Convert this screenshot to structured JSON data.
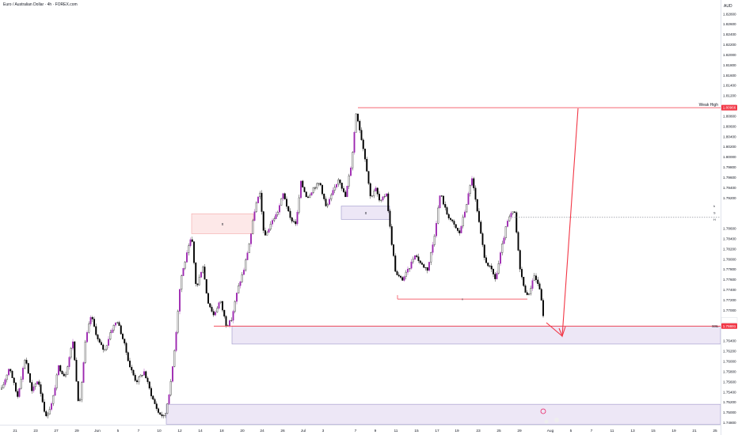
{
  "header": {
    "symbol_title": "Euro / Australian Dollar · 4h · FOREX.com",
    "currency": "AUD"
  },
  "colors": {
    "candle": "#000000",
    "highlight_candle": "#9c27b0",
    "red_line": "#f23645",
    "zone_fill": "#ede7f6",
    "zone_border": "#9c95c9",
    "pink_fill": "#fde8e8"
  },
  "chart_data": {
    "type": "candlestick",
    "timeframe": "4h",
    "y_ticks": [
      "1.82800",
      "1.82600",
      "1.82400",
      "1.82200",
      "1.82000",
      "1.81800",
      "1.81600",
      "1.81400",
      "1.81200",
      "1.80800",
      "1.80600",
      "1.80400",
      "1.80200",
      "1.80000",
      "1.79800",
      "1.79600",
      "1.79400",
      "1.79200",
      "1.78800",
      "1.78600",
      "1.78400",
      "1.78200",
      "1.78000",
      "1.77800",
      "1.77600",
      "1.77400",
      "1.77200",
      "1.77000",
      "1.76800",
      "1.76400",
      "1.76200",
      "1.76000",
      "1.75800",
      "1.75600",
      "1.75400",
      "1.75200",
      "1.75000",
      "1.74800"
    ],
    "ylim": [
      1.7476,
      1.8295
    ],
    "x_ticks": [
      "21",
      "23",
      "27",
      "29",
      "Jun",
      "5",
      "7",
      "10",
      "12",
      "14",
      "18",
      "20",
      "24",
      "26",
      "Jul",
      "3",
      "7",
      "9",
      "11",
      "15",
      "17",
      "19",
      "23",
      "25",
      "29",
      "Aug",
      "5",
      "7",
      "11",
      "13",
      "15",
      "19",
      "21",
      "25"
    ],
    "current_price_label": "1.76691",
    "countdown_label": "03:06:35",
    "weak_high_price_label": "1.80966",
    "weak_high_label": "Weak High",
    "ssl_label": "SSL",
    "mid_price_label": "1.78819",
    "marker_x": "x",
    "legend_letters": [
      "h",
      "S",
      "H"
    ],
    "weak_high_price": 1.80966,
    "current_price": 1.76691,
    "mid_level_price": 1.78819,
    "demand_zone": [
      1.7634,
      1.7669
    ],
    "lower_zone": [
      1.7477,
      1.7516
    ],
    "pink_zone": [
      1.785,
      1.7889
    ],
    "upper_x_zone": [
      1.7878,
      1.7904
    ],
    "inner_x_level": 1.7722
  }
}
